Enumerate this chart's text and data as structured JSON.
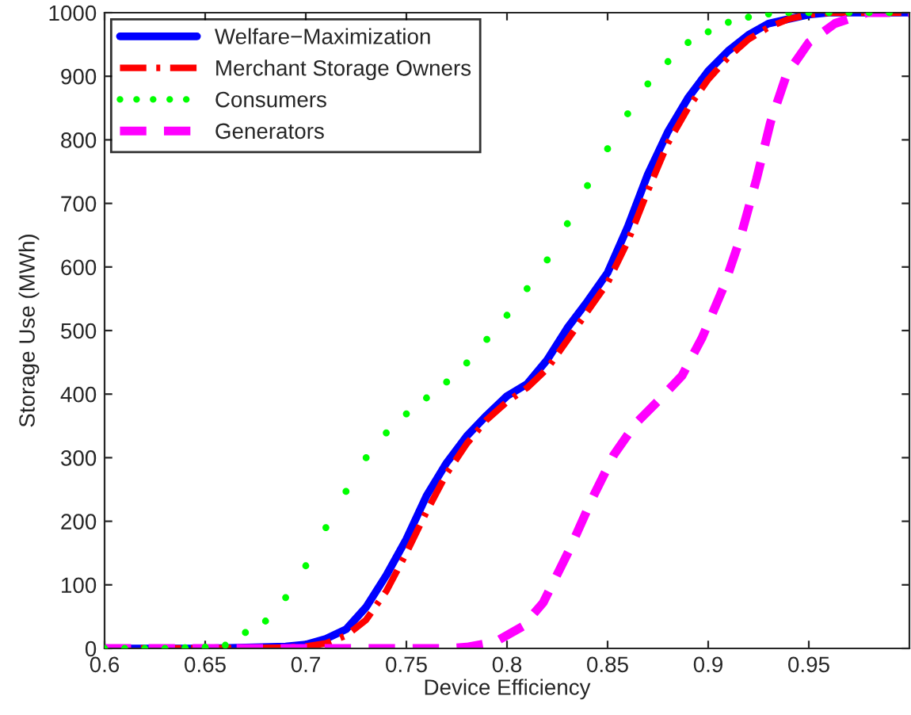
{
  "chart_data": {
    "type": "line",
    "xlabel": "Device Efficiency",
    "ylabel": "Storage Use (MWh)",
    "xlim": [
      0.6,
      1.0
    ],
    "xticks": [
      0.6,
      0.65,
      0.7,
      0.75,
      0.8,
      0.85,
      0.9,
      0.95
    ],
    "ylim": [
      0,
      1000
    ],
    "yticks": [
      0,
      100,
      200,
      300,
      400,
      500,
      600,
      700,
      800,
      900,
      1000
    ],
    "grid": false,
    "legend": "top left",
    "series": [
      {
        "name": "Welfare−Maximization",
        "color": "#0000ff",
        "line_style": "solid",
        "x": [
          0.6,
          0.65,
          0.69,
          0.7,
          0.71,
          0.72,
          0.73,
          0.74,
          0.75,
          0.76,
          0.77,
          0.78,
          0.79,
          0.8,
          0.81,
          0.82,
          0.83,
          0.84,
          0.85,
          0.86,
          0.87,
          0.88,
          0.89,
          0.9,
          0.91,
          0.92,
          0.93,
          0.94,
          0.95,
          0.96,
          1.0
        ],
        "values": [
          0,
          0,
          3,
          6,
          15,
          30,
          65,
          115,
          172,
          240,
          292,
          334,
          367,
          397,
          416,
          454,
          504,
          546,
          591,
          663,
          746,
          813,
          866,
          908,
          940,
          965,
          983,
          990,
          997,
          1000,
          1000
        ]
      },
      {
        "name": "Merchant Storage Owners",
        "color": "#ff0000",
        "line_style": "dashdot",
        "x": [
          0.6,
          0.65,
          0.69,
          0.7,
          0.71,
          0.72,
          0.73,
          0.74,
          0.75,
          0.76,
          0.77,
          0.78,
          0.79,
          0.8,
          0.81,
          0.82,
          0.83,
          0.84,
          0.85,
          0.86,
          0.87,
          0.88,
          0.89,
          0.9,
          0.91,
          0.92,
          0.93,
          0.94,
          0.95,
          0.96,
          1.0
        ],
        "values": [
          0,
          0,
          1,
          3,
          8,
          20,
          45,
          90,
          150,
          215,
          275,
          322,
          360,
          388,
          410,
          440,
          485,
          530,
          575,
          640,
          720,
          795,
          850,
          895,
          930,
          958,
          977,
          990,
          997,
          1000,
          1000
        ]
      },
      {
        "name": "Consumers",
        "color": "#00ff00",
        "type": "scatter",
        "x": [
          0.6,
          0.61,
          0.62,
          0.63,
          0.64,
          0.65,
          0.66,
          0.67,
          0.68,
          0.69,
          0.7,
          0.71,
          0.72,
          0.73,
          0.74,
          0.75,
          0.76,
          0.77,
          0.78,
          0.79,
          0.8,
          0.81,
          0.82,
          0.83,
          0.84,
          0.85,
          0.86,
          0.87,
          0.88,
          0.89,
          0.9,
          0.91,
          0.92,
          0.93,
          0.94,
          0.95,
          0.96,
          0.97,
          0.98,
          0.99
        ],
        "values": [
          0,
          0,
          0,
          0,
          1,
          2,
          5,
          25,
          43,
          80,
          130,
          190,
          247,
          300,
          339,
          369,
          394,
          419,
          449,
          486,
          524,
          566,
          611,
          668,
          728,
          786,
          841,
          888,
          923,
          953,
          970,
          985,
          993,
          998,
          1000,
          1000,
          1000,
          1000,
          1000,
          1000
        ]
      },
      {
        "name": "Generators",
        "color": "#ff00ff",
        "line_style": "dashed",
        "x": [
          0.6,
          0.7,
          0.77,
          0.78,
          0.794,
          0.808,
          0.818,
          0.831,
          0.843,
          0.853,
          0.864,
          0.875,
          0.887,
          0.897,
          0.908,
          0.916,
          0.924,
          0.931,
          0.939,
          0.95,
          0.963,
          0.979,
          1.0
        ],
        "values": [
          0,
          0,
          0,
          2,
          10,
          35,
          72,
          155,
          240,
          304,
          354,
          389,
          429,
          489,
          571,
          646,
          738,
          828,
          903,
          953,
          983,
          1000,
          1000
        ]
      }
    ]
  }
}
